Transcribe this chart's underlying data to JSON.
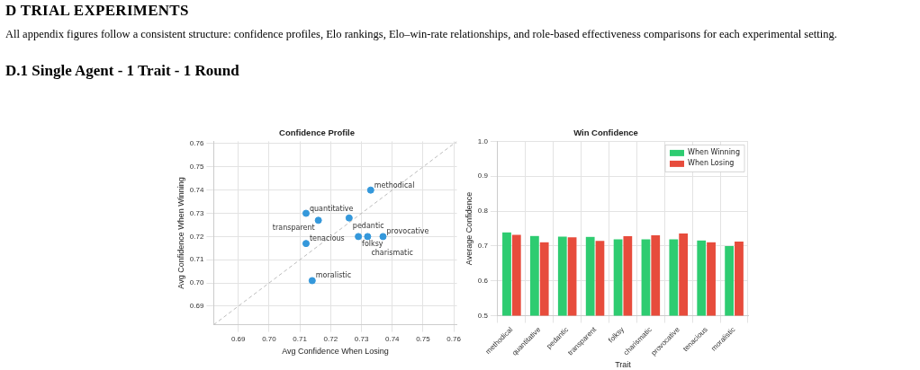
{
  "chart_data": [
    {
      "type": "other",
      "title": "D TRIAL EXPERIMENTS",
      "subtitle": "All appendix figures follow a consistent structure: confidence profiles, Elo rankings, Elo–win-rate relationships, and role-based effectiveness comparisons for each experimental setting.",
      "annotations": [
        "D.1 Single Agent - 1 Trait - 1 Round"
      ]
    },
    {
      "type": "scatter",
      "title": "Confidence Profile",
      "xlabel": "Avg Confidence When Losing",
      "ylabel": "Avg Confidence When Winning",
      "xlim": [
        0.682,
        0.761
      ],
      "ylim": [
        0.682,
        0.761
      ],
      "xticks": [
        {
          "value": 0.69,
          "label": "0.69"
        },
        {
          "value": 0.7,
          "label": "0.70"
        },
        {
          "value": 0.71,
          "label": "0.71"
        },
        {
          "value": 0.72,
          "label": "0.72"
        },
        {
          "value": 0.73,
          "label": "0.73"
        },
        {
          "value": 0.74,
          "label": "0.74"
        },
        {
          "value": 0.75,
          "label": "0.75"
        },
        {
          "value": 0.76,
          "label": "0.76"
        }
      ],
      "yticks": [
        {
          "value": 0.69,
          "label": "0.69"
        },
        {
          "value": 0.7,
          "label": "0.70"
        },
        {
          "value": 0.71,
          "label": "0.71"
        },
        {
          "value": 0.72,
          "label": "0.72"
        },
        {
          "value": 0.73,
          "label": "0.73"
        },
        {
          "value": 0.74,
          "label": "0.74"
        },
        {
          "value": 0.75,
          "label": "0.75"
        },
        {
          "value": 0.76,
          "label": "0.76"
        }
      ],
      "grid": true,
      "legend": false,
      "series": [
        {
          "type": "line",
          "color": "#b4b4b4",
          "line_style": "dashed",
          "marker": "none",
          "x": [
            0.682,
            0.761
          ],
          "values": [
            0.682,
            0.761
          ]
        },
        {
          "type": "scatter",
          "color": "#3498db",
          "marker": "circle",
          "x": [
            0.733,
            0.712,
            0.726,
            0.716,
            0.729,
            0.732,
            0.737,
            0.712,
            0.714
          ],
          "values": [
            0.74,
            0.73,
            0.728,
            0.727,
            0.72,
            0.72,
            0.72,
            0.717,
            0.701
          ]
        }
      ],
      "annotations": [
        {
          "text": "methodical",
          "x": 0.733,
          "y": 0.74
        },
        {
          "text": "quantitative",
          "x": 0.712,
          "y": 0.73
        },
        {
          "text": "pedantic",
          "x": 0.726,
          "y": 0.728
        },
        {
          "text": "transparent",
          "x": 0.716,
          "y": 0.727
        },
        {
          "text": "folksy",
          "x": 0.729,
          "y": 0.72
        },
        {
          "text": "charismatic",
          "x": 0.732,
          "y": 0.72
        },
        {
          "text": "provocative",
          "x": 0.737,
          "y": 0.72
        },
        {
          "text": "tenacious",
          "x": 0.712,
          "y": 0.717
        },
        {
          "text": "moralistic",
          "x": 0.714,
          "y": 0.701
        }
      ]
    },
    {
      "type": "bar",
      "title": "Win Confidence",
      "xlabel": "Trait",
      "ylabel": "Average Confidence",
      "categories": [
        "methodical",
        "quantitative",
        "pedantic",
        "transparent",
        "folksy",
        "charismatic",
        "provocative",
        "tenacious",
        "moralistic"
      ],
      "ylim": [
        0.5,
        1.0
      ],
      "yticks": [
        0.5,
        0.6,
        0.7,
        0.8,
        0.9,
        {
          "value": 1.0,
          "label": "1.0"
        }
      ],
      "grid": true,
      "legend": "top right",
      "series": [
        {
          "name": "When Winning",
          "color": "#2ecc71",
          "values": [
            0.74,
            0.73,
            0.728,
            0.727,
            0.72,
            0.72,
            0.72,
            0.717,
            0.701
          ]
        },
        {
          "name": "When Losing",
          "color": "#e74c3c",
          "values": [
            0.733,
            0.712,
            0.726,
            0.716,
            0.729,
            0.732,
            0.737,
            0.712,
            0.714
          ]
        }
      ]
    }
  ]
}
